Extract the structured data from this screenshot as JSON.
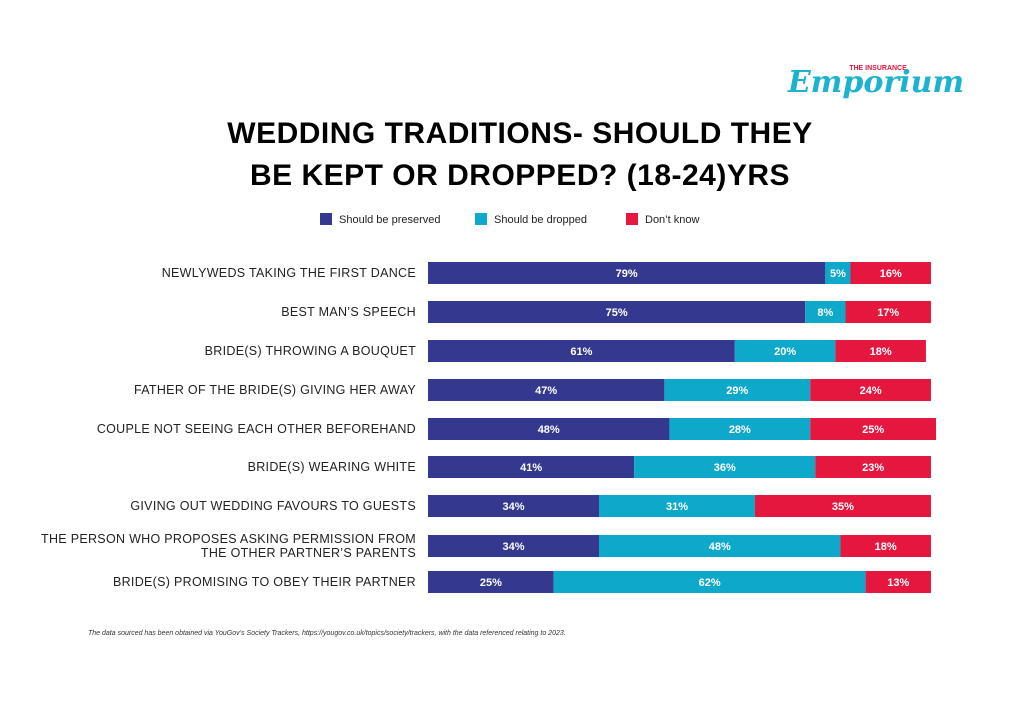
{
  "logo": {
    "top": "THE INSURANCE",
    "main": "Emporium"
  },
  "chart_data": {
    "type": "stacked-bar-horizontal",
    "title": [
      "WEDDING TRADITIONS- SHOULD THEY",
      "BE KEPT OR DROPPED? (18-24)YRS"
    ],
    "categories": [
      "NEWLYWEDS TAKING THE FIRST DANCE",
      "BEST MAN’S SPEECH",
      "BRIDE(S) THROWING A BOUQUET",
      "FATHER OF THE BRIDE(S) GIVING HER AWAY",
      "COUPLE NOT SEEING EACH OTHER BEFOREHAND",
      "BRIDE(S) WEARING WHITE",
      "GIVING OUT WEDDING FAVOURS TO GUESTS",
      "THE PERSON WHO PROPOSES ASKING PERMISSION FROM THE OTHER PARTNER’S PARENTS",
      "BRIDE(S) PROMISING TO OBEY THEIR PARTNER"
    ],
    "series": [
      {
        "name": "Should be preserved",
        "color": "#35388f",
        "values": [
          79,
          75,
          61,
          47,
          48,
          41,
          34,
          34,
          25
        ],
        "value_labels": [
          "79%",
          "75%",
          "61%",
          "47%",
          "48%",
          "41%",
          "34%",
          "34%",
          "25%"
        ]
      },
      {
        "name": "Should be dropped",
        "color": "#0ea8cb",
        "values": [
          5,
          8,
          20,
          29,
          28,
          36,
          31,
          48,
          62
        ],
        "value_labels": [
          "5%",
          "8%",
          "20%",
          "29%",
          "28%",
          "36%",
          "31%",
          "48%",
          "62%"
        ]
      },
      {
        "name": "Don’t know",
        "color": "#e5173f",
        "values": [
          16,
          17,
          18,
          24,
          25,
          23,
          35,
          18,
          13
        ],
        "value_labels": [
          "16%",
          "17%",
          "18%",
          "24%",
          "25%",
          "23%",
          "35%",
          "18%",
          "13%"
        ]
      }
    ],
    "footnote": "The data sourced has been obtained via YouGov’s Society Trackers, https://yougov.co.uk/topics/society/trackers, with the data referenced relating to 2023."
  }
}
